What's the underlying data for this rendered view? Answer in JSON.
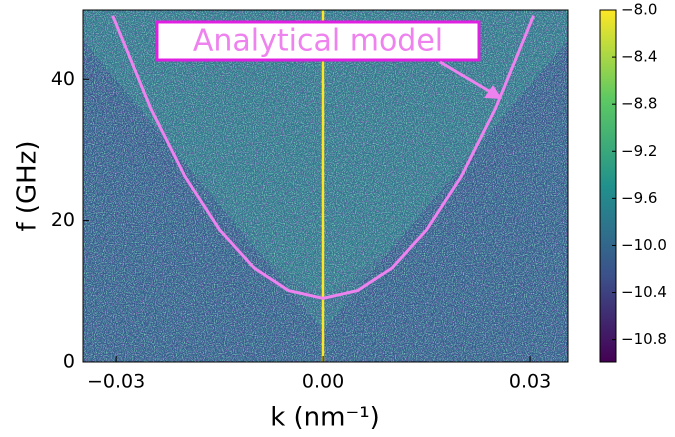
{
  "chart_data": {
    "type": "line",
    "xlabel": "k (nm⁻¹)",
    "ylabel": "f (GHz)",
    "xlim": [
      -0.0348,
      0.0355
    ],
    "ylim": [
      0,
      49.8
    ],
    "xticks": [
      {
        "value": -0.03,
        "label": "−0.03"
      },
      {
        "value": 0,
        "label": "0.00"
      },
      {
        "value": 0.03,
        "label": "0.03"
      }
    ],
    "yticks": [
      0,
      20,
      40
    ],
    "series": [
      {
        "name": "Analytical model",
        "color": "#ee82ee",
        "x": [
          -0.0305,
          -0.025,
          -0.02,
          -0.015,
          -0.01,
          -0.005,
          0,
          0.005,
          0.01,
          0.015,
          0.02,
          0.025,
          0.0305
        ],
        "values": [
          49.0,
          35.9,
          26.2,
          18.7,
          13.3,
          10.1,
          9.0,
          10.1,
          13.3,
          18.7,
          26.2,
          35.9,
          49.0
        ]
      }
    ],
    "colorbar": {
      "clim": [
        -10.99,
        -8.0
      ],
      "ticks": [
        {
          "value": -8.0,
          "label": "−8.0"
        },
        {
          "value": -8.4,
          "label": "−8.4"
        },
        {
          "value": -8.8,
          "label": "−8.8"
        },
        {
          "value": -9.2,
          "label": "−9.2"
        },
        {
          "value": -9.6,
          "label": "−9.6"
        },
        {
          "value": -10.0,
          "label": "−10.0"
        },
        {
          "value": -10.4,
          "label": "−10.4"
        },
        {
          "value": -10.8,
          "label": "−10.8"
        }
      ]
    }
  }
}
